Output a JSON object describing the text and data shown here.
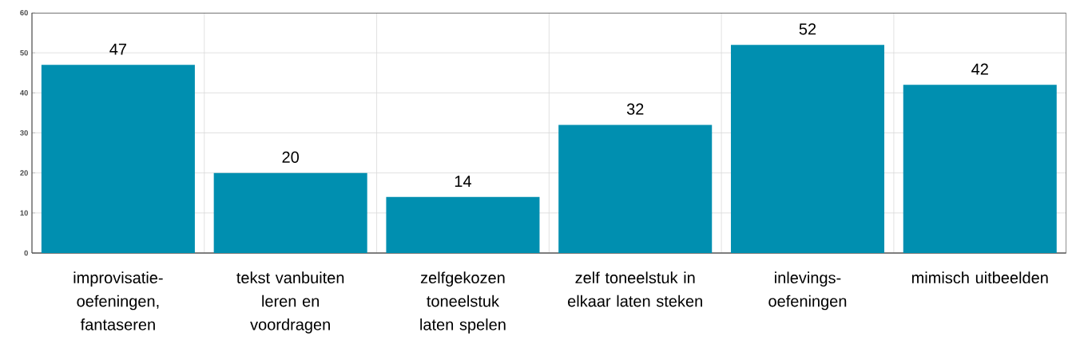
{
  "chart_data": {
    "type": "bar",
    "categories": [
      "improvisatie-oefeningen, fantaseren",
      "tekst vanbuiten leren en voordragen",
      "zelfgekozen toneelstuk laten spelen",
      "zelf toneelstuk in elkaar laten steken",
      "inlevings-oefeningen",
      "mimisch uitbeelden"
    ],
    "values": [
      47,
      20,
      14,
      32,
      52,
      42
    ],
    "color": "#008fb0",
    "ylim": [
      0,
      60
    ],
    "yticks": [
      0,
      10,
      20,
      30,
      40,
      50,
      60
    ],
    "grid": true,
    "data_labels": true
  }
}
